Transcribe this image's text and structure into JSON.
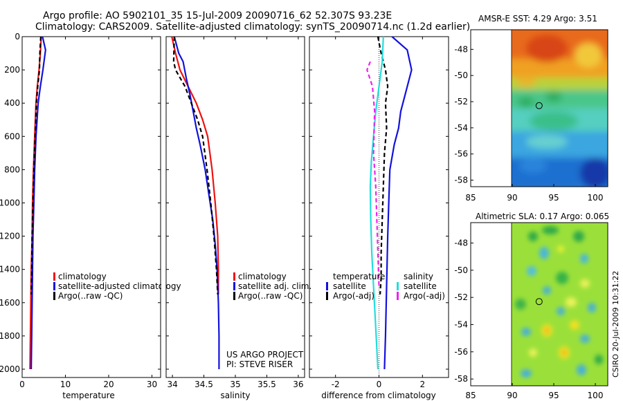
{
  "header": {
    "line1": "Argo profile: AO 5902101_35 15-Jul-2009 20090716_62 52.307S 93.23E",
    "line2": "Climatology: CARS2009. Satellite-adjusted climatology: synTS_20090714.nc (1.2d earlier)"
  },
  "side_label": "CSIRO 20-Jul-2009 10:31:22",
  "project": {
    "line1": "US ARGO PROJECT",
    "line2": "PI: STEVE RISER"
  },
  "colors": {
    "red": "#ee1111",
    "blue": "#1111dd",
    "black": "#000000",
    "cyan": "#22dddd",
    "magenta": "#ee22ee"
  },
  "chart_data": [
    {
      "type": "line",
      "name": "temperature",
      "xlabel": "temperature",
      "xlim": [
        0,
        32
      ],
      "ylim": [
        0,
        2050
      ],
      "xticks": [
        0,
        10,
        20,
        30
      ],
      "yticks": [
        0,
        200,
        400,
        600,
        800,
        1000,
        1200,
        1400,
        1600,
        1800,
        2000
      ],
      "y_reversed": true,
      "legend": {
        "position": "bottom-right",
        "entries": [
          {
            "label": "climatology",
            "color": "#ee1111"
          },
          {
            "label": "satellite-adjusted climatology",
            "color": "#1111dd"
          },
          {
            "label": "Argo(..raw -QC)",
            "color": "#000000"
          }
        ]
      },
      "series": [
        {
          "name": "climatology",
          "color": "#ee1111",
          "dash": false,
          "x": [
            4.4,
            4.2,
            3.9,
            3.5,
            3.2,
            2.9,
            2.6,
            2.4,
            2.3,
            2.1,
            2.0,
            1.9,
            1.8
          ],
          "y": [
            0,
            100,
            200,
            300,
            400,
            600,
            800,
            1000,
            1200,
            1400,
            1600,
            1800,
            2000
          ]
        },
        {
          "name": "satellite-adjusted climatology",
          "color": "#1111dd",
          "dash": false,
          "x": [
            4.7,
            5.4,
            4.8,
            4.2,
            3.7,
            3.2,
            2.9,
            2.7,
            2.5,
            2.4,
            2.3,
            2.2,
            2.1
          ],
          "y": [
            0,
            80,
            200,
            300,
            400,
            600,
            800,
            1000,
            1200,
            1400,
            1600,
            1800,
            2000
          ]
        },
        {
          "name": "Argo(..raw -QC)",
          "color": "#000000",
          "dash": true,
          "x": [
            4.3,
            4.1,
            4.0,
            3.6,
            3.3,
            3.0,
            2.7,
            2.5,
            2.3,
            2.2,
            2.1
          ],
          "y": [
            0,
            100,
            200,
            300,
            400,
            600,
            800,
            1000,
            1200,
            1400,
            1550
          ]
        }
      ]
    },
    {
      "type": "line",
      "name": "salinity",
      "xlabel": "salinity",
      "xlim": [
        33.9,
        36.1
      ],
      "ylim": [
        0,
        2050
      ],
      "xticks": [
        34,
        34.5,
        35,
        35.5,
        36
      ],
      "y_reversed": true,
      "legend": {
        "position": "bottom-right",
        "entries": [
          {
            "label": "climatology",
            "color": "#ee1111"
          },
          {
            "label": "satellite adj. clim.",
            "color": "#1111dd"
          },
          {
            "label": "Argo(..raw -QC)",
            "color": "#000000"
          }
        ]
      },
      "series": [
        {
          "name": "climatology",
          "color": "#ee1111",
          "dash": false,
          "x": [
            33.99,
            34.05,
            34.12,
            34.25,
            34.38,
            34.48,
            34.56,
            34.63,
            34.68,
            34.72,
            34.73,
            34.73
          ],
          "y": [
            0,
            100,
            200,
            300,
            400,
            500,
            600,
            800,
            1000,
            1200,
            1400,
            1550
          ]
        },
        {
          "name": "satellite adj. clim.",
          "color": "#1111dd",
          "dash": false,
          "x": [
            34.03,
            34.1,
            34.17,
            34.22,
            34.28,
            34.33,
            34.38,
            34.44,
            34.52,
            34.58,
            34.64,
            34.68,
            34.71,
            34.73,
            34.74,
            34.74
          ],
          "y": [
            0,
            100,
            150,
            250,
            350,
            450,
            550,
            650,
            800,
            950,
            1100,
            1250,
            1400,
            1600,
            1800,
            2000
          ]
        },
        {
          "name": "Argo(..raw -QC)",
          "color": "#000000",
          "dash": true,
          "x": [
            34.03,
            34.02,
            34.05,
            34.2,
            34.3,
            34.4,
            34.48,
            34.55,
            34.61,
            34.66,
            34.7,
            34.72
          ],
          "y": [
            0,
            150,
            200,
            300,
            400,
            500,
            600,
            800,
            1000,
            1200,
            1400,
            1550
          ]
        }
      ]
    },
    {
      "type": "line",
      "name": "difference",
      "xlabel": "difference from climatology",
      "xlim": [
        -3.2,
        3.2
      ],
      "ylim": [
        0,
        2050
      ],
      "xticks": [
        -2,
        0,
        2
      ],
      "y_reversed": true,
      "legend": {
        "position": "bottom",
        "entries": [
          {
            "label": "temperature",
            "color": ""
          },
          {
            "label": "satellite",
            "color": "#1111dd"
          },
          {
            "label": "Argo(-adj)",
            "color": "#000000"
          },
          {
            "label": "salinity",
            "color": ""
          },
          {
            "label": "satellite",
            "color": "#22dddd"
          },
          {
            "label": "Argo(-adj)",
            "color": "#ee22ee"
          }
        ]
      },
      "series": [
        {
          "name": "temperature satellite",
          "color": "#1111dd",
          "dash": false,
          "x": [
            0.6,
            1.3,
            1.5,
            1.2,
            1.0,
            0.9,
            0.7,
            0.5,
            0.45,
            0.4,
            0.35,
            0.3,
            0.25
          ],
          "y": [
            0,
            80,
            200,
            350,
            450,
            550,
            650,
            800,
            1000,
            1200,
            1500,
            1800,
            2000
          ]
        },
        {
          "name": "temperature Argo(-adj)",
          "color": "#000000",
          "dash": true,
          "x": [
            -0.05,
            0.1,
            0.3,
            0.4,
            0.3,
            0.35,
            0.25,
            0.2,
            0.15,
            0.1,
            0.1,
            0.05
          ],
          "y": [
            0,
            100,
            200,
            300,
            400,
            550,
            700,
            900,
            1100,
            1300,
            1450,
            1550
          ]
        },
        {
          "name": "salinity satellite",
          "color": "#22dddd",
          "dash": false,
          "x": [
            0.2,
            0.15,
            0.0,
            -0.15,
            -0.25,
            -0.35,
            -0.4,
            -0.38,
            -0.33,
            -0.25,
            -0.15,
            -0.05
          ],
          "y": [
            0,
            150,
            300,
            450,
            600,
            750,
            900,
            1100,
            1300,
            1500,
            1750,
            2000
          ]
        },
        {
          "name": "salinity Argo(-adj)",
          "color": "#ee22ee",
          "dash": true,
          "x": [
            -0.4,
            -0.55,
            -0.3,
            -0.2,
            -0.25,
            -0.15,
            -0.1,
            -0.05,
            0.0
          ],
          "y": [
            150,
            200,
            300,
            450,
            700,
            900,
            1100,
            1300,
            1500
          ]
        }
      ]
    },
    {
      "type": "heatmap",
      "name": "sst_map",
      "title": "AMSR-E SST: 4.29 Argo: 3.51",
      "xlim": [
        85,
        101.5
      ],
      "ylim": [
        -58.5,
        -46.5
      ],
      "xticks": [
        85,
        90,
        95,
        100
      ],
      "yticks": [
        -48,
        -50,
        -52,
        -54,
        -56,
        -58
      ],
      "marker": {
        "lon": 93.23,
        "lat": -52.307
      }
    },
    {
      "type": "heatmap",
      "name": "sla_map",
      "title": "Altimetric SLA: 0.17 Argo: 0.065",
      "xlim": [
        85,
        101.5
      ],
      "ylim": [
        -58.5,
        -46.5
      ],
      "xticks": [
        85,
        90,
        95,
        100
      ],
      "yticks": [
        -48,
        -50,
        -52,
        -54,
        -56,
        -58
      ],
      "marker": {
        "lon": 93.23,
        "lat": -52.307
      }
    }
  ]
}
